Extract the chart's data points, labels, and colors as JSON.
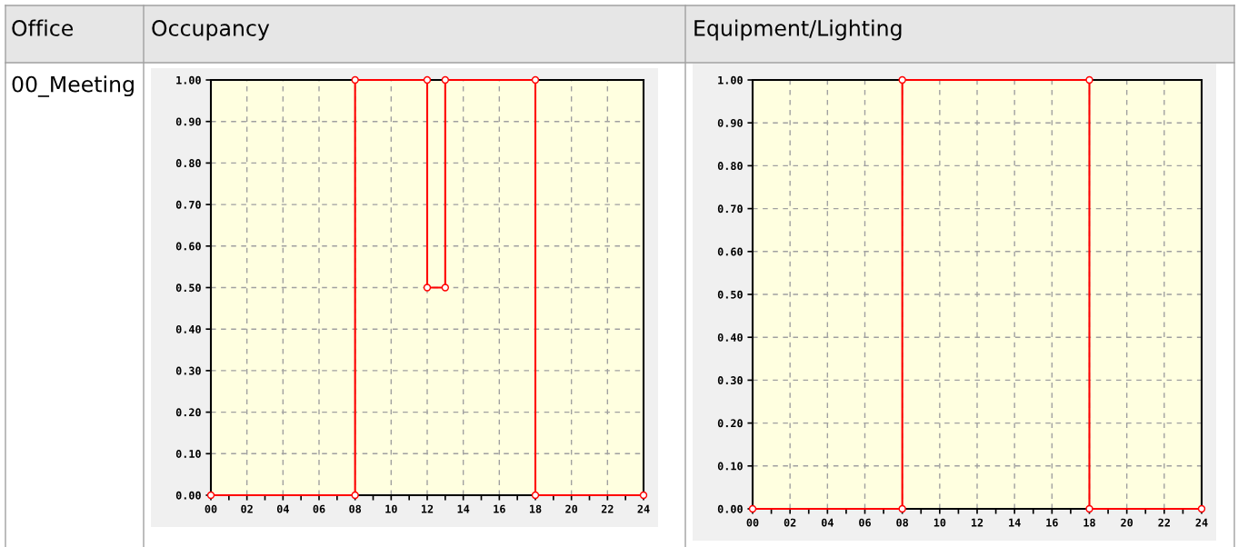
{
  "chart_data": [
    {
      "type": "line",
      "title": "Occupancy",
      "annotations": [
        "Office",
        "00_Meeting"
      ],
      "series": [
        {
          "color": "#ff0000",
          "x": [
            0,
            8,
            8,
            12,
            12,
            13,
            13,
            18,
            18,
            24
          ],
          "values": [
            0,
            0,
            1,
            1,
            0.5,
            0.5,
            1,
            1,
            0,
            0
          ]
        }
      ],
      "marker": "circle",
      "line_style": "solid",
      "grid": true,
      "xlim": [
        0,
        24
      ],
      "ylim": [
        0,
        1
      ],
      "xticks": [
        {
          "value": 0,
          "label": "00"
        },
        {
          "value": 1,
          "label": null
        },
        {
          "value": 2,
          "label": "02"
        },
        {
          "value": 3,
          "label": null
        },
        {
          "value": 4,
          "label": "04"
        },
        {
          "value": 5,
          "label": null
        },
        {
          "value": 6,
          "label": "06"
        },
        {
          "value": 7,
          "label": null
        },
        {
          "value": 8,
          "label": "08"
        },
        {
          "value": 9,
          "label": null
        },
        {
          "value": 10,
          "label": "10"
        },
        {
          "value": 11,
          "label": null
        },
        {
          "value": 12,
          "label": "12"
        },
        {
          "value": 13,
          "label": null
        },
        {
          "value": 14,
          "label": "14"
        },
        {
          "value": 15,
          "label": null
        },
        {
          "value": 16,
          "label": "16"
        },
        {
          "value": 17,
          "label": null
        },
        {
          "value": 18,
          "label": "18"
        },
        {
          "value": 19,
          "label": null
        },
        {
          "value": 20,
          "label": "20"
        },
        {
          "value": 21,
          "label": null
        },
        {
          "value": 22,
          "label": "22"
        },
        {
          "value": 23,
          "label": null
        },
        {
          "value": 24,
          "label": "24"
        }
      ],
      "yticks": [
        {
          "value": 0,
          "label": "0.00"
        },
        {
          "value": 0.1,
          "label": "0.10"
        },
        {
          "value": 0.2,
          "label": "0.20"
        },
        {
          "value": 0.3,
          "label": "0.30"
        },
        {
          "value": 0.4,
          "label": "0.40"
        },
        {
          "value": 0.5,
          "label": "0.50"
        },
        {
          "value": 0.6,
          "label": "0.60"
        },
        {
          "value": 0.7,
          "label": "0.70"
        },
        {
          "value": 0.8,
          "label": "0.80"
        },
        {
          "value": 0.9,
          "label": "0.90"
        },
        {
          "value": 1,
          "label": "1.00"
        }
      ]
    },
    {
      "type": "line",
      "title": "Equipment/Lighting",
      "series": [
        {
          "color": "#ff0000",
          "x": [
            0,
            8,
            8,
            18,
            18,
            24
          ],
          "values": [
            0,
            0,
            1,
            1,
            0,
            0
          ]
        }
      ],
      "marker": "circle",
      "line_style": "solid",
      "grid": true,
      "xlim": [
        0,
        24
      ],
      "ylim": [
        0,
        1
      ],
      "xticks": [
        {
          "value": 0,
          "label": "00"
        },
        {
          "value": 1,
          "label": null
        },
        {
          "value": 2,
          "label": "02"
        },
        {
          "value": 3,
          "label": null
        },
        {
          "value": 4,
          "label": "04"
        },
        {
          "value": 5,
          "label": null
        },
        {
          "value": 6,
          "label": "06"
        },
        {
          "value": 7,
          "label": null
        },
        {
          "value": 8,
          "label": "08"
        },
        {
          "value": 9,
          "label": null
        },
        {
          "value": 10,
          "label": "10"
        },
        {
          "value": 11,
          "label": null
        },
        {
          "value": 12,
          "label": "12"
        },
        {
          "value": 13,
          "label": null
        },
        {
          "value": 14,
          "label": "14"
        },
        {
          "value": 15,
          "label": null
        },
        {
          "value": 16,
          "label": "16"
        },
        {
          "value": 17,
          "label": null
        },
        {
          "value": 18,
          "label": "18"
        },
        {
          "value": 19,
          "label": null
        },
        {
          "value": 20,
          "label": "20"
        },
        {
          "value": 21,
          "label": null
        },
        {
          "value": 22,
          "label": "22"
        },
        {
          "value": 23,
          "label": null
        },
        {
          "value": 24,
          "label": "24"
        }
      ],
      "yticks": [
        {
          "value": 0,
          "label": "0.00"
        },
        {
          "value": 0.1,
          "label": "0.10"
        },
        {
          "value": 0.2,
          "label": "0.20"
        },
        {
          "value": 0.3,
          "label": "0.30"
        },
        {
          "value": 0.4,
          "label": "0.40"
        },
        {
          "value": 0.5,
          "label": "0.50"
        },
        {
          "value": 0.6,
          "label": "0.60"
        },
        {
          "value": 0.7,
          "label": "0.70"
        },
        {
          "value": 0.8,
          "label": "0.80"
        },
        {
          "value": 0.9,
          "label": "0.90"
        },
        {
          "value": 1,
          "label": "1.00"
        }
      ]
    }
  ]
}
